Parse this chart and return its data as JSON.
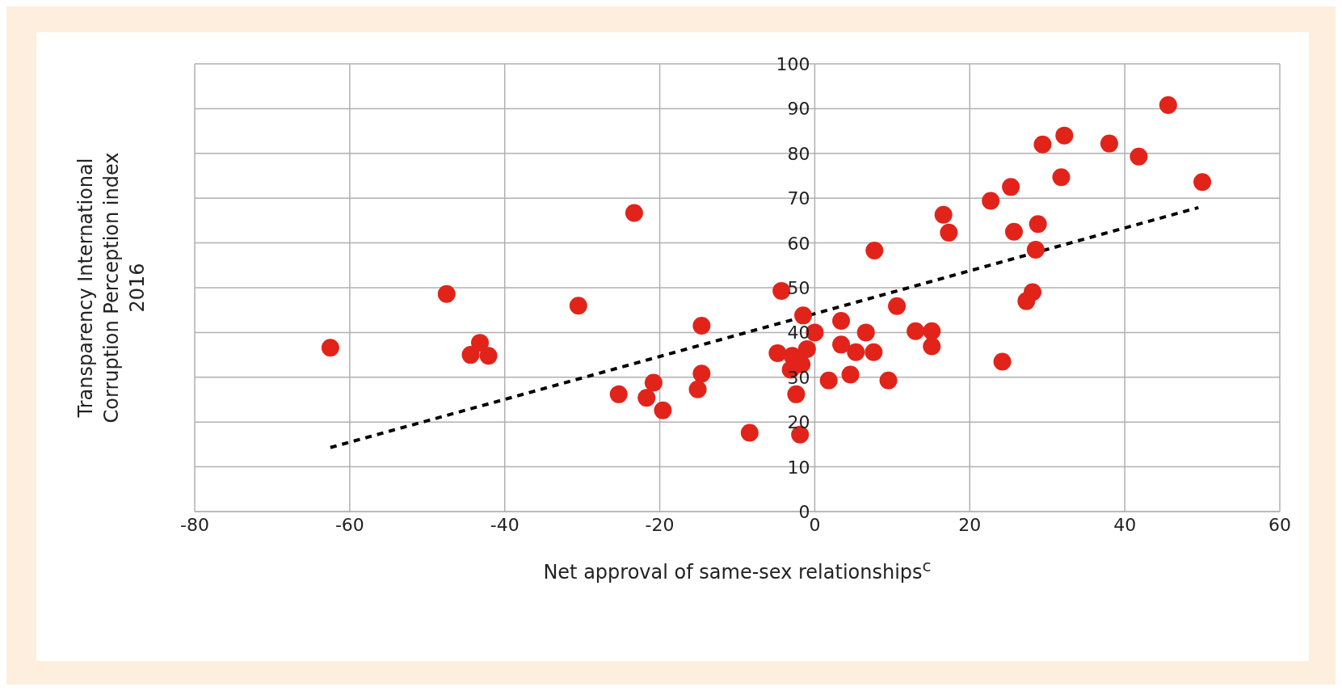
{
  "chart_data": {
    "type": "scatter",
    "xlabel": "Net approval of same-sex relationships$^{c}$",
    "ylabel": "Transparency International Corruption Perception index 2016",
    "xlim": [
      -80,
      60
    ],
    "xticks": [
      -80,
      -60,
      -40,
      -20,
      0,
      20,
      40,
      60
    ],
    "ylim": [
      0,
      100
    ],
    "yticks": [
      0,
      10,
      20,
      30,
      40,
      50,
      60,
      70,
      80,
      90,
      100
    ],
    "grid": true,
    "series": [
      {
        "type": "scatter",
        "color": "#e2231a",
        "marker": "circle",
        "x": [
          -62.5,
          -47.5,
          -43.2,
          -44.4,
          -42.1,
          -30.5,
          -23.3,
          -25.3,
          -21.7,
          -20.8,
          -19.6,
          -14.6,
          -14.6,
          -15.1,
          -8.4,
          -4.3,
          -4.8,
          -2.9,
          -3.1,
          -1.7,
          -2.4,
          -1.9,
          -1.5,
          -1.0,
          0,
          1.8,
          3.4,
          3.4,
          4.6,
          5.3,
          6.6,
          7.6,
          7.7,
          9.5,
          10.6,
          13,
          15.1,
          15.1,
          16.6,
          17.3,
          22.7,
          25.3,
          25.7,
          24.2,
          29.4,
          32.2,
          31.8,
          28.8,
          28.5,
          28.1,
          27.3,
          38,
          41.8,
          45.6,
          50
        ],
        "values": [
          36.6,
          48.6,
          37.7,
          35,
          34.8,
          46,
          66.7,
          26.2,
          25.4,
          28.8,
          22.6,
          41.5,
          30.8,
          27.3,
          17.6,
          49.3,
          35.4,
          34.8,
          31.7,
          32.9,
          26.2,
          17.2,
          43.8,
          36.3,
          40,
          29.3,
          42.6,
          37.3,
          30.6,
          35.6,
          40,
          35.6,
          58.3,
          29.3,
          45.9,
          40.3,
          40.3,
          36.9,
          66.3,
          62.3,
          69.4,
          72.5,
          62.5,
          33.5,
          82,
          84,
          74.7,
          64.2,
          58.5,
          49,
          47,
          82.2,
          79.3,
          90.8,
          73.6
        ]
      },
      {
        "type": "line",
        "color": "#000000",
        "line_style": "dashed",
        "marker": "none",
        "x": [
          -62.5,
          49.5
        ],
        "values": [
          14.3,
          67.9
        ]
      }
    ]
  }
}
